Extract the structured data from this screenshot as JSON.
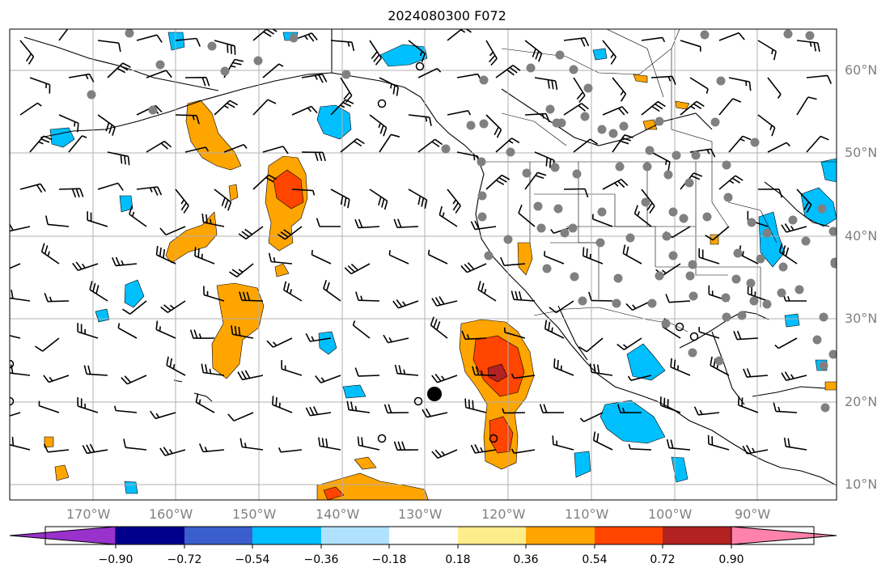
{
  "title": "2024080300 F072",
  "axes": {
    "longitude_labels": [
      "170°W",
      "160°W",
      "150°W",
      "140°W",
      "130°W",
      "120°W",
      "110°W",
      "100°W",
      "90°W"
    ],
    "latitude_labels": [
      "60°N",
      "50°N",
      "40°N",
      "30°N",
      "20°N",
      "10°N"
    ]
  },
  "colorbar": {
    "tick_labels": [
      "−0.90",
      "−0.72",
      "−0.54",
      "−0.36",
      "−0.18",
      "0.18",
      "0.36",
      "0.54",
      "0.72",
      "0.90"
    ],
    "colors": [
      "#9932cc",
      "#00008b",
      "#3a5fcd",
      "#00bfff",
      "#b0e2ff",
      "#ffffff",
      "#ffec8b",
      "#ffa500",
      "#ff4500",
      "#b22222",
      "#ff82ab"
    ]
  },
  "layers": {
    "field_colors": {
      "positive_1": "#ffa500",
      "positive_2": "#ff4500",
      "positive_3": "#b22222",
      "negative_1": "#00bfff",
      "negative_2": "#b0e2ff"
    },
    "wind_barbs": "black",
    "station_dots": "#808080"
  }
}
